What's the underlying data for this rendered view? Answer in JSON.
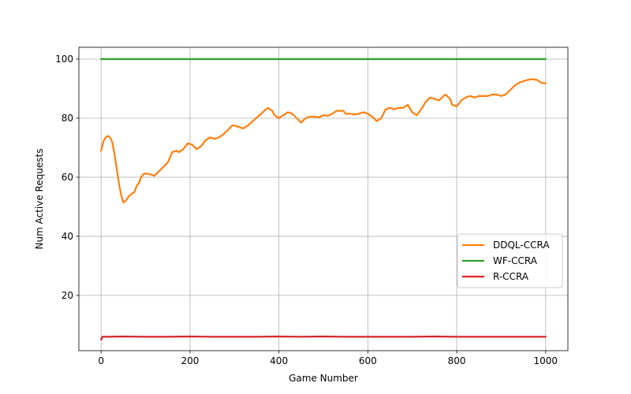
{
  "chart_data": {
    "type": "line",
    "xlabel": "Game Number",
    "ylabel": "Num Active Requests",
    "xlim": [
      -50,
      1050
    ],
    "ylim": [
      1.3,
      104
    ],
    "xticks": [
      0,
      200,
      400,
      600,
      800,
      1000
    ],
    "yticks": [
      20,
      40,
      60,
      80,
      100
    ],
    "grid": true,
    "legend_position": "lower-right",
    "series": [
      {
        "name": "DDQL-CCRA",
        "color": "#ff7f0e",
        "x": [
          0,
          5,
          10,
          15,
          20,
          25,
          30,
          35,
          40,
          45,
          50,
          55,
          60,
          65,
          70,
          75,
          80,
          85,
          90,
          95,
          100,
          110,
          120,
          130,
          140,
          150,
          160,
          170,
          175,
          185,
          195,
          205,
          215,
          225,
          235,
          245,
          255,
          265,
          275,
          285,
          295,
          300,
          310,
          320,
          330,
          345,
          360,
          375,
          385,
          390,
          400,
          410,
          420,
          430,
          440,
          450,
          460,
          470,
          480,
          490,
          500,
          510,
          520,
          530,
          540,
          545,
          550,
          560,
          570,
          580,
          590,
          600,
          610,
          620,
          630,
          640,
          650,
          660,
          670,
          680,
          690,
          700,
          705,
          710,
          720,
          730,
          740,
          750,
          760,
          770,
          775,
          785,
          790,
          800,
          810,
          820,
          830,
          840,
          850,
          860,
          870,
          880,
          890,
          900,
          910,
          920,
          930,
          940,
          950,
          960,
          970,
          980,
          990,
          1000
        ],
        "y": [
          69,
          72,
          73.5,
          74,
          73.5,
          72,
          68,
          63,
          58,
          54,
          51.5,
          52,
          53,
          54,
          54.5,
          55,
          57,
          58,
          60,
          61,
          61.3,
          61,
          60.5,
          62,
          63.5,
          65,
          68.5,
          69,
          68.5,
          69.5,
          71.5,
          71,
          69.5,
          70.5,
          72.5,
          73.5,
          73,
          73.5,
          74.5,
          76,
          77.5,
          77.5,
          77,
          76.5,
          77.5,
          79.5,
          81.5,
          83.5,
          82.5,
          81,
          80,
          81,
          82,
          81.5,
          80,
          78.5,
          80,
          80.5,
          80.5,
          80.3,
          81,
          80.8,
          81.5,
          82.5,
          82.5,
          82.5,
          81.5,
          81.5,
          81.2,
          81.5,
          82,
          81.5,
          80.5,
          79,
          80,
          83,
          83.5,
          83,
          83.5,
          83.5,
          84.5,
          82,
          81.5,
          81,
          83,
          85.5,
          87,
          86.5,
          86,
          87.5,
          88,
          86.5,
          84.5,
          84,
          86,
          87,
          87.5,
          87,
          87.5,
          87.5,
          87.5,
          88,
          88,
          87.5,
          88,
          89.5,
          91,
          92,
          92.5,
          93,
          93.2,
          93,
          92,
          91.8
        ]
      },
      {
        "name": "WF-CCRA",
        "color": "#2ca02c",
        "x": [
          0,
          1000
        ],
        "y": [
          100,
          100
        ]
      },
      {
        "name": "R-CCRA",
        "color": "#d62728",
        "x": [
          0,
          3,
          10,
          50,
          100,
          150,
          200,
          250,
          300,
          350,
          400,
          450,
          500,
          550,
          600,
          650,
          700,
          750,
          800,
          850,
          900,
          950,
          1000
        ],
        "y": [
          5,
          6,
          6,
          6.1,
          6,
          6,
          6.1,
          6,
          6,
          6,
          6.1,
          6,
          6.1,
          6,
          6,
          6,
          6,
          6.1,
          6,
          6,
          6,
          6,
          6
        ]
      }
    ]
  }
}
